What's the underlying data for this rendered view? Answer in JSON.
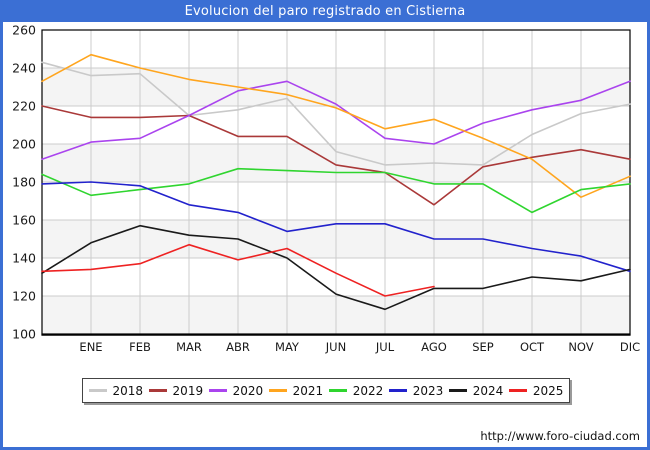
{
  "title": "Evolucion del paro registrado en Cistierna",
  "footer": {
    "url": "http://www.foro-ciudad.com"
  },
  "colors": {
    "frame_blue": "#3b6fd4",
    "plot_band": "#f4f4f4",
    "gridline": "#cccccc",
    "axis": "#000000",
    "tick_text": "#1a1a1a"
  },
  "chart_data": {
    "type": "line",
    "title": "Evolucion del paro registrado en Cistierna",
    "xlabel": "",
    "ylabel": "",
    "ylim": [
      100,
      260
    ],
    "ytick_step": 20,
    "grid": true,
    "legend_position": "bottom",
    "x_labels": [
      "ENE",
      "FEB",
      "MAR",
      "ABR",
      "MAY",
      "JUN",
      "JUL",
      "AGO",
      "SEP",
      "OCT",
      "NOV",
      "DIC"
    ],
    "note": "Each series has a starting point on the left axis before ENE; 2025 ends at AGO",
    "shaded_bands": [
      [
        220,
        240
      ],
      [
        180,
        200
      ],
      [
        140,
        160
      ],
      [
        100,
        120
      ]
    ],
    "series": [
      {
        "name": "2018",
        "color": "#c9c9c9",
        "values": [
          243,
          236,
          237,
          215,
          218,
          224,
          196,
          189,
          190,
          189,
          205,
          216,
          221
        ]
      },
      {
        "name": "2019",
        "color": "#aa3939",
        "values": [
          220,
          214,
          214,
          215,
          204,
          204,
          189,
          185,
          168,
          188,
          193,
          197,
          192
        ]
      },
      {
        "name": "2020",
        "color": "#aa44ee",
        "values": [
          192,
          201,
          203,
          215,
          228,
          233,
          221,
          203,
          200,
          211,
          218,
          223,
          233
        ]
      },
      {
        "name": "2021",
        "color": "#ffa51e",
        "values": [
          233,
          247,
          240,
          234,
          230,
          226,
          219,
          208,
          213,
          203,
          192,
          172,
          183
        ]
      },
      {
        "name": "2022",
        "color": "#2fd52f",
        "values": [
          184,
          173,
          176,
          179,
          187,
          186,
          185,
          185,
          179,
          179,
          164,
          176,
          179
        ]
      },
      {
        "name": "2023",
        "color": "#2222cc",
        "values": [
          179,
          180,
          178,
          168,
          164,
          154,
          158,
          158,
          150,
          150,
          145,
          141,
          133
        ]
      },
      {
        "name": "2024",
        "color": "#1a1a1a",
        "values": [
          132,
          148,
          157,
          152,
          150,
          140,
          121,
          113,
          124,
          124,
          130,
          128,
          134
        ]
      },
      {
        "name": "2025",
        "color": "#ee2222",
        "values": [
          133,
          134,
          137,
          147,
          139,
          145,
          132,
          120,
          125
        ]
      }
    ]
  }
}
